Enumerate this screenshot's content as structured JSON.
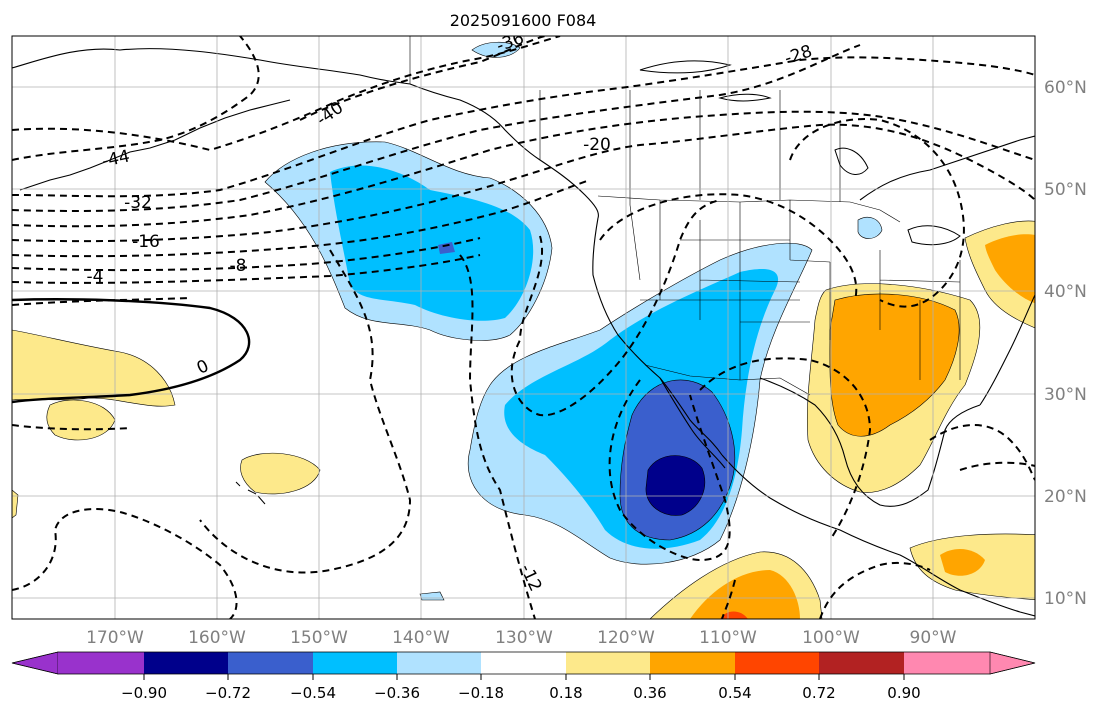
{
  "title": "2025091600 F084",
  "map": {
    "lon_labels": [
      "170°W",
      "160°W",
      "150°W",
      "140°W",
      "130°W",
      "120°W",
      "110°W",
      "100°W",
      "90°W"
    ],
    "lat_labels": [
      "60°N",
      "50°N",
      "40°N",
      "30°N",
      "20°N",
      "10°N"
    ],
    "contour_labels": [
      "-36",
      "-28",
      "-40",
      "-20",
      "-44",
      "-32",
      "-16",
      "-8",
      "-4",
      "0",
      "-12"
    ],
    "colorbar_ticks": [
      "−0.90",
      "−0.72",
      "−0.54",
      "−0.36",
      "−0.18",
      "0.18",
      "0.36",
      "0.54",
      "0.72",
      "0.90"
    ],
    "colorbar_colors": [
      "#9932cc",
      "#00008b",
      "#3a5fcd",
      "#00bfff",
      "#b0e2ff",
      "#ffffff",
      "#fde98b",
      "#ffa500",
      "#ff4500",
      "#b22222",
      "#ff88b0"
    ],
    "grid_color": "#b0b0b0",
    "tick_label_color": "#808080"
  }
}
